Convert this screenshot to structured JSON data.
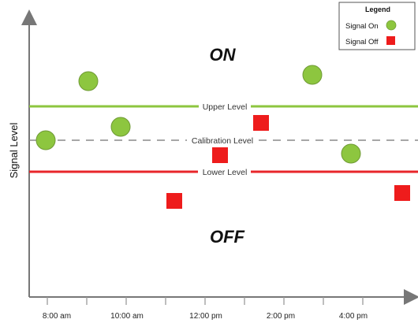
{
  "diagram": {
    "y_axis_label": "Signal Level",
    "x_ticks": [
      "8:00 am",
      "10:00 am",
      "12:00 pm",
      "2:00 pm",
      "4:00 pm"
    ],
    "regions": {
      "on": "ON",
      "off": "OFF"
    },
    "levels": {
      "upper": {
        "label": "Upper Level",
        "color": "#8dc63f"
      },
      "calibration": {
        "label": "Calibration Level",
        "color": "#8a8a8a"
      },
      "lower": {
        "label": "Lower Level",
        "color": "#e8262a"
      }
    },
    "legend": {
      "title": "Legend",
      "items": [
        {
          "label": "Signal On",
          "marker": "circle",
          "color": "#8dc63f"
        },
        {
          "label": "Signal Off",
          "marker": "square",
          "color": "#ee1c1c"
        }
      ]
    }
  }
}
